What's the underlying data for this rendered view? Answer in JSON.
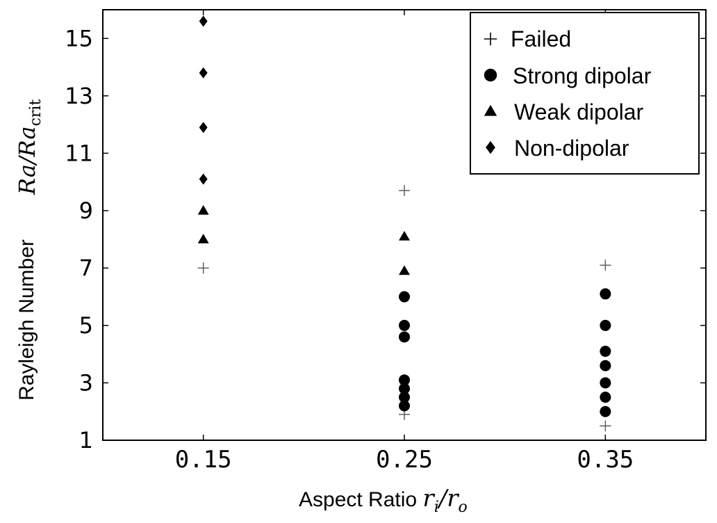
{
  "chart_data": {
    "type": "scatter",
    "x_categories": [
      "0.15",
      "0.25",
      "0.35"
    ],
    "x_values": [
      0.15,
      0.25,
      0.35
    ],
    "xlim": [
      0.1,
      0.4
    ],
    "ylim": [
      1,
      16
    ],
    "yticks": [
      1,
      3,
      5,
      7,
      9,
      11,
      13,
      15
    ],
    "xlabel": {
      "text": "Aspect Ratio ",
      "math_base1": "r",
      "math_sub1": "i",
      "math_slash": "/",
      "math_base2": "r",
      "math_sub2": "o"
    },
    "ylabel": {
      "text": "Rayleigh Number",
      "math_base": "Ra/Ra",
      "math_sub": "crit"
    },
    "legend_position": "top-right",
    "series": [
      {
        "name": "Failed",
        "marker": "plus",
        "color": "#555555",
        "points": [
          [
            0.15,
            7.0
          ],
          [
            0.25,
            9.7
          ],
          [
            0.25,
            1.9
          ],
          [
            0.35,
            7.1
          ],
          [
            0.35,
            1.5
          ]
        ]
      },
      {
        "name": "Strong dipolar",
        "marker": "circle",
        "color": "#000000",
        "points": [
          [
            0.25,
            6.0
          ],
          [
            0.25,
            5.0
          ],
          [
            0.25,
            4.6
          ],
          [
            0.25,
            3.1
          ],
          [
            0.25,
            2.8
          ],
          [
            0.25,
            2.5
          ],
          [
            0.25,
            2.2
          ],
          [
            0.35,
            6.1
          ],
          [
            0.35,
            5.0
          ],
          [
            0.35,
            4.1
          ],
          [
            0.35,
            3.6
          ],
          [
            0.35,
            3.0
          ],
          [
            0.35,
            2.5
          ],
          [
            0.35,
            2.0
          ]
        ]
      },
      {
        "name": "Weak dipolar",
        "marker": "triangle",
        "color": "#000000",
        "points": [
          [
            0.15,
            8.0
          ],
          [
            0.15,
            9.0
          ],
          [
            0.25,
            6.9
          ],
          [
            0.25,
            8.1
          ]
        ]
      },
      {
        "name": "Non-dipolar",
        "marker": "diamond",
        "color": "#000000",
        "points": [
          [
            0.15,
            10.1
          ],
          [
            0.15,
            11.9
          ],
          [
            0.15,
            13.8
          ],
          [
            0.15,
            15.6
          ]
        ]
      }
    ]
  }
}
